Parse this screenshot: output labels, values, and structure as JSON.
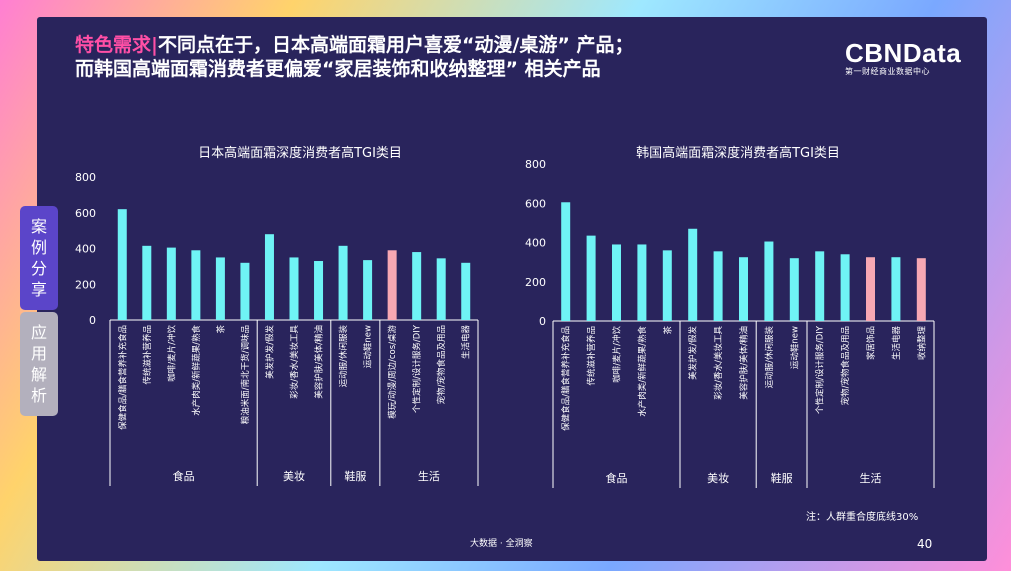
{
  "headline": {
    "highlight": "特色需求|",
    "line1": "不同点在于，日本高端面霜用户喜爱“动漫/桌游” 产品；",
    "line2": "而韩国高端面霜消费者更偏爱“家居装饰和收纳整理” 相关产品"
  },
  "brand": {
    "name": "CBNData",
    "subtitle": "第一财经商业数据中心"
  },
  "tabs": {
    "case": [
      "案",
      "例",
      "分",
      "享"
    ],
    "apply": [
      "应",
      "用",
      "解",
      "析"
    ]
  },
  "colors": {
    "bar": "#6ff3f5",
    "highlight_bar": "#f7a8b3",
    "text": "#ffffff",
    "slide_bg": "#29245c",
    "accent": "#ff4fa6"
  },
  "note": "注：人群重合度底线30%",
  "footer": "大数据 · 全洞察",
  "page_number": "40",
  "chart_data": [
    {
      "type": "bar",
      "title": "日本高端面霜深度消费者高TGI类目",
      "ylim": [
        0,
        800
      ],
      "yticks": [
        0,
        200,
        400,
        600,
        800
      ],
      "categories": [
        "保健食品/膳食营养补充食品",
        "传统滋补营养品",
        "咖啡/麦片/冲饮",
        "水产肉类/新鲜蔬果/熟食",
        "茶",
        "粮油米面/南北干货/调味品",
        "美发护发/假发",
        "彩妆/香水/美妆工具",
        "美容护肤/美体/精油",
        "运动服/休闲服装",
        "运动鞋new",
        "模玩/动漫/周边/cos/桌游",
        "个性定制/设计服务/DIY",
        "宠物/宠物食品及用品",
        "生活电器"
      ],
      "values": [
        620,
        415,
        405,
        390,
        350,
        320,
        480,
        350,
        330,
        415,
        335,
        390,
        380,
        345,
        320
      ],
      "highlight_index": 11,
      "groups": [
        {
          "label": "食品",
          "count": 6
        },
        {
          "label": "美妆",
          "count": 3
        },
        {
          "label": "鞋服",
          "count": 2
        },
        {
          "label": "生活",
          "count": 4
        }
      ]
    },
    {
      "type": "bar",
      "title": "韩国高端面霜深度消费者高TGI类目",
      "ylim": [
        0,
        800
      ],
      "yticks": [
        0,
        200,
        400,
        600,
        800
      ],
      "categories": [
        "保健食品/膳食营养补充食品",
        "传统滋补营养品",
        "咖啡/麦片/冲饮",
        "水产肉类/新鲜蔬果/熟食",
        "茶",
        "美发护发/假发",
        "彩妆/香水/美妆工具",
        "美容护肤/美体/精油",
        "运动服/休闲服装",
        "运动鞋new",
        "个性定制/设计服务/DIY",
        "宠物/宠物食品及用品",
        "家居饰品",
        "生活电器",
        "收纳整理"
      ],
      "values": [
        605,
        435,
        390,
        390,
        360,
        470,
        355,
        325,
        405,
        320,
        355,
        340,
        325,
        325,
        320
      ],
      "highlight_indices": [
        12,
        14
      ],
      "groups": [
        {
          "label": "食品",
          "count": 5
        },
        {
          "label": "美妆",
          "count": 3
        },
        {
          "label": "鞋服",
          "count": 2
        },
        {
          "label": "生活",
          "count": 5
        }
      ]
    }
  ]
}
